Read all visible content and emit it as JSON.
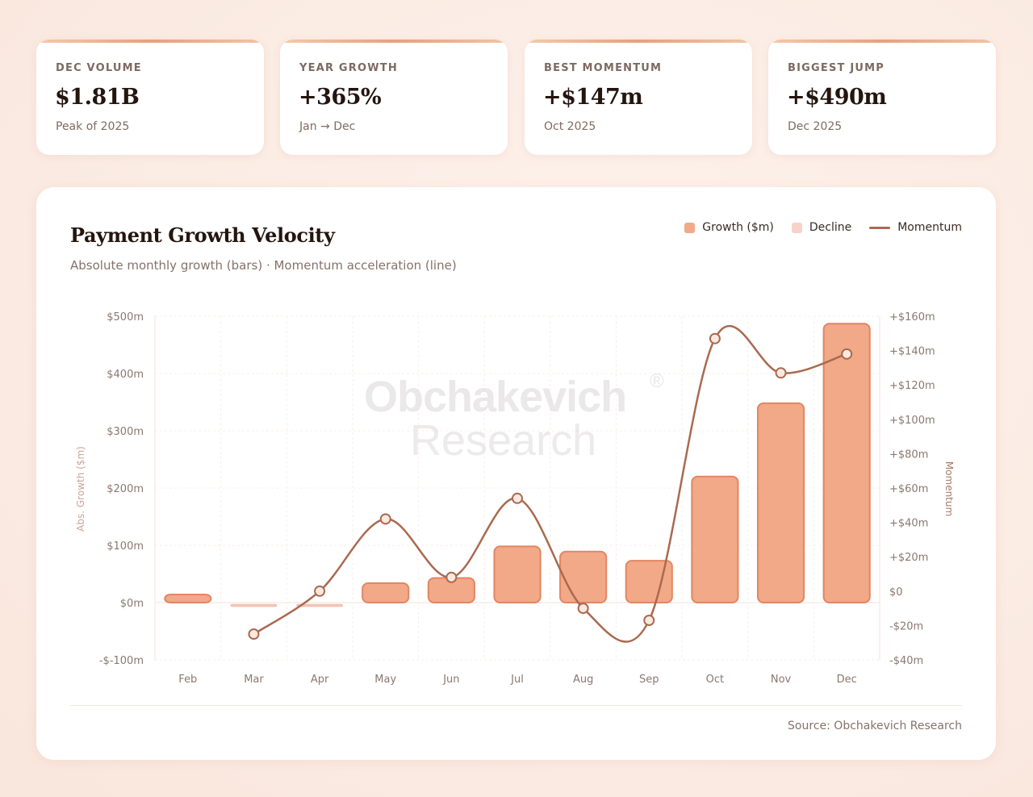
{
  "kpis": [
    {
      "label": "DEC VOLUME",
      "value": "$1.81B",
      "sub": "Peak of 2025"
    },
    {
      "label": "YEAR GROWTH",
      "value": "+365%",
      "sub": "Jan → Dec"
    },
    {
      "label": "BEST MOMENTUM",
      "value": "+$147m",
      "sub": "Oct 2025"
    },
    {
      "label": "BIGGEST JUMP",
      "value": "+$490m",
      "sub": "Dec 2025"
    }
  ],
  "panel": {
    "title": "Payment Growth Velocity",
    "subtitle": "Absolute monthly growth (bars) · Momentum acceleration (line)",
    "source": "Source: Obchakevich Research"
  },
  "legend": {
    "growth": "Growth ($m)",
    "decline": "Decline",
    "momentum": "Momentum"
  },
  "watermark": {
    "line1": "Obchakevich",
    "mark": "®",
    "line2": "Research"
  },
  "colors": {
    "growth_fill": "#f1a988",
    "growth_stroke": "#e48562",
    "decline": "#f3c6b6",
    "momentum": "#a96a50",
    "axis_left_label": "#c9a596",
    "axis_right_label": "#a87866"
  },
  "chart_data": {
    "type": "bar",
    "categories": [
      "Feb",
      "Mar",
      "Apr",
      "May",
      "Jun",
      "Jul",
      "Aug",
      "Sep",
      "Oct",
      "Nov",
      "Dec"
    ],
    "series": [
      {
        "name": "Growth ($m)",
        "type": "bar",
        "axis": "left",
        "values": [
          14,
          -5,
          -4,
          34,
          43,
          98,
          89,
          73,
          220,
          348,
          487
        ]
      },
      {
        "name": "Momentum",
        "type": "line",
        "axis": "right",
        "values": [
          null,
          -25,
          0,
          42,
          8,
          54,
          -10,
          -17,
          147,
          127,
          138
        ]
      }
    ],
    "y_left": {
      "label": "Abs. Growth ($m)",
      "range": [
        -100,
        500
      ],
      "ticks": [
        500,
        400,
        300,
        200,
        100,
        0,
        -100
      ],
      "tick_labels": [
        "$500m",
        "$400m",
        "$300m",
        "$200m",
        "$100m",
        "$0m",
        "-$-100m"
      ]
    },
    "y_right": {
      "label": "Momentum",
      "range": [
        -40,
        160
      ],
      "ticks": [
        160,
        140,
        120,
        100,
        80,
        60,
        40,
        20,
        0,
        -20,
        -40
      ],
      "tick_labels": [
        "+$160m",
        "+$140m",
        "+$120m",
        "+$100m",
        "+$80m",
        "+$60m",
        "+$40m",
        "+$20m",
        "$0",
        "-$20m",
        "-$40m"
      ]
    },
    "grid": true,
    "legend_position": "top-right"
  }
}
